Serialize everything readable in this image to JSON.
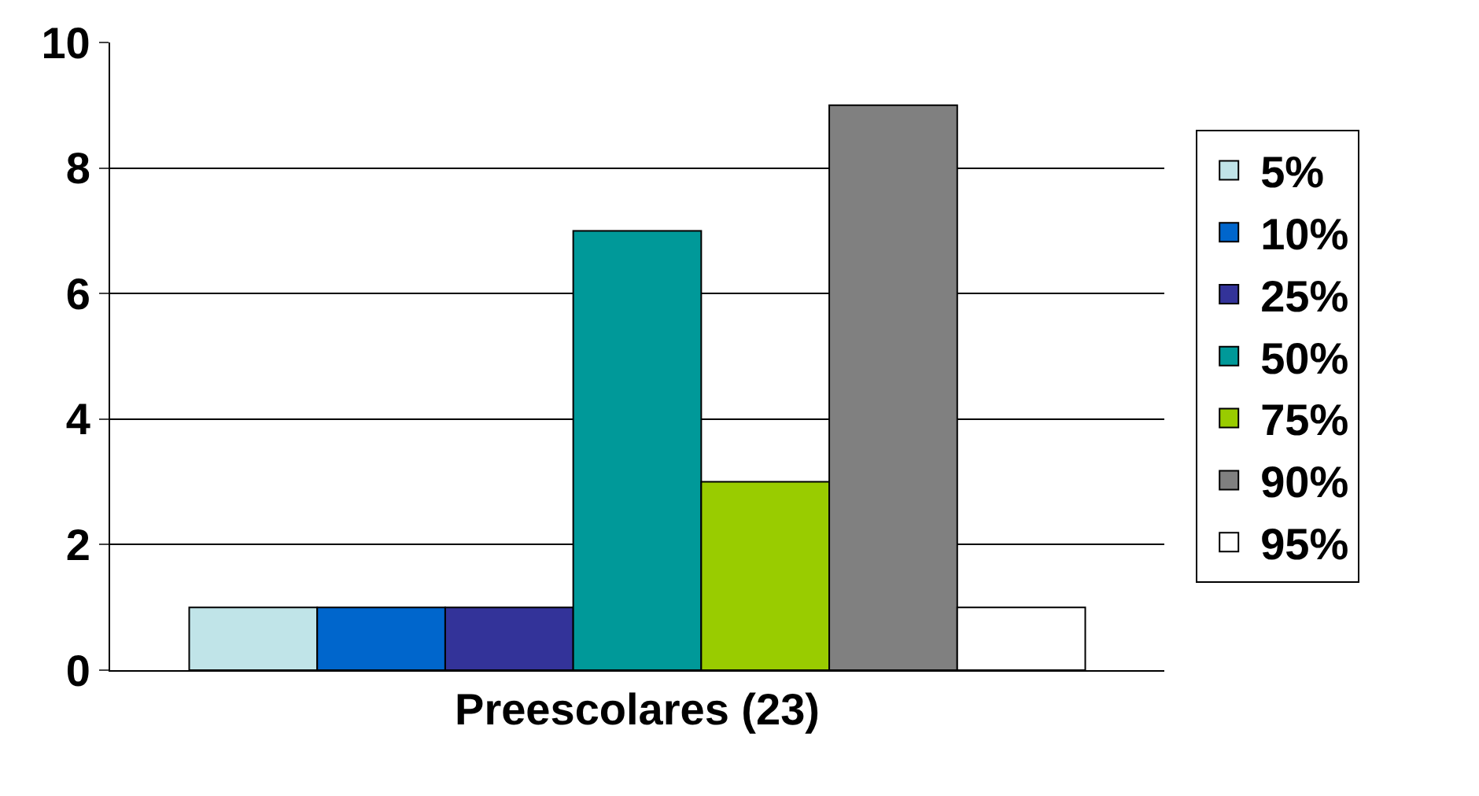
{
  "chart_data": {
    "type": "bar",
    "categories": [
      "Preescolares (23)"
    ],
    "series": [
      {
        "name": "5%",
        "color": "#c0e4e8",
        "values": [
          1
        ]
      },
      {
        "name": "10%",
        "color": "#0066cc",
        "values": [
          1
        ]
      },
      {
        "name": "25%",
        "color": "#333399",
        "values": [
          1
        ]
      },
      {
        "name": "50%",
        "color": "#009999",
        "values": [
          7
        ]
      },
      {
        "name": "75%",
        "color": "#99cc00",
        "values": [
          3
        ]
      },
      {
        "name": "90%",
        "color": "#808080",
        "values": [
          9
        ]
      },
      {
        "name": "95%",
        "color": "#ffffff",
        "values": [
          1
        ]
      }
    ],
    "ylim": [
      0,
      10
    ],
    "yticks": [
      0,
      2,
      4,
      6,
      8,
      10
    ],
    "grid": "y",
    "legend": "right"
  }
}
